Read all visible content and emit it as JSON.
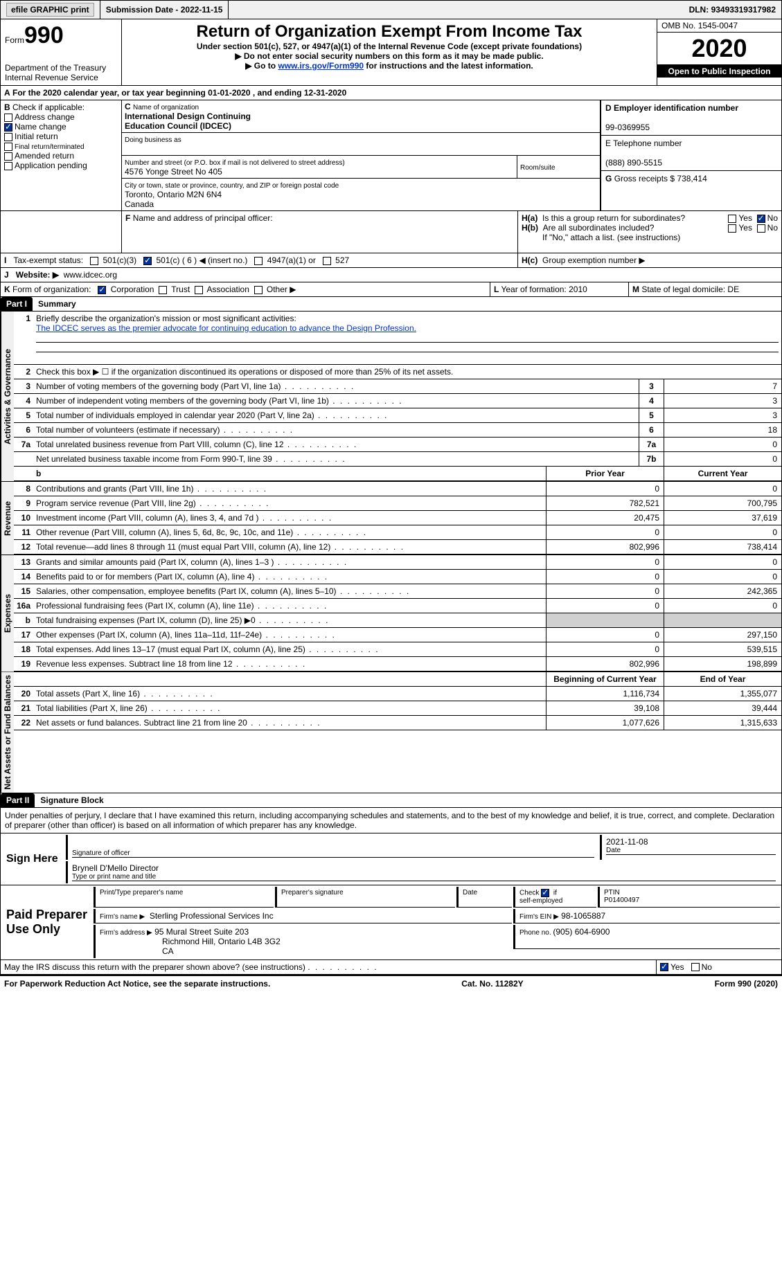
{
  "topbar": {
    "efile_label": "efile GRAPHIC print - ",
    "submission_label": "Submission Date - ",
    "submission_date": "2022-11-15",
    "dln_label": "DLN: ",
    "dln": "93493319317982"
  },
  "header": {
    "form_word": "Form",
    "form_no": "990",
    "dept1": "Department of the Treasury",
    "dept2": "Internal Revenue Service",
    "title": "Return of Organization Exempt From Income Tax",
    "sub1": "Under section 501(c), 527, or 4947(a)(1) of the Internal Revenue Code (except private foundations)",
    "sub2": "▶ Do not enter social security numbers on this form as it may be made public.",
    "sub3a": "▶ Go to ",
    "sub3_link": "www.irs.gov/Form990",
    "sub3b": " for instructions and the latest information.",
    "omb_label": "OMB No. ",
    "omb": "1545-0047",
    "year": "2020",
    "open_label": "Open to Public Inspection"
  },
  "A": {
    "text_a": "For the 2020 calendar year, or tax year beginning ",
    "begin": "01-01-2020",
    "text_b": " , and ending ",
    "end": "12-31-2020"
  },
  "B": {
    "label": "B",
    "check_label": "Check if applicable:",
    "items": [
      "Address change",
      "Name change",
      "Initial return",
      "Final return/terminated",
      "Amended return",
      "Application pending"
    ],
    "checked_idx": 1
  },
  "C": {
    "name_label": "Name of organization",
    "name1": "International Design Continuing",
    "name2": "Education Council (IDCEC)",
    "dba_label": "Doing business as",
    "street_label": "Number and street (or P.O. box if mail is not delivered to street address)",
    "room_label": "Room/suite",
    "street": "4576 Yonge Street No 405",
    "city_label": "City or town, state or province, country, and ZIP or foreign postal code",
    "city": "Toronto, Ontario  M2N 6N4",
    "country": "Canada"
  },
  "D": {
    "label": "D Employer identification number",
    "value": "99-0369955"
  },
  "E": {
    "label": "E Telephone number",
    "value": "(888) 890-5515"
  },
  "G": {
    "label": "G",
    "text": "Gross receipts $ ",
    "value": "738,414"
  },
  "F": {
    "label": "F",
    "text": "Name and address of principal officer:"
  },
  "H": {
    "ha_label": "H(a)",
    "ha_text": "Is this a group return for subordinates?",
    "yes": "Yes",
    "no": "No",
    "hb_label": "H(b)",
    "hb_text": "Are all subordinates included?",
    "hb_note": "If \"No,\" attach a list. (see instructions)",
    "hc_label": "H(c)",
    "hc_text": "Group exemption number ▶"
  },
  "I": {
    "label": "I",
    "text": "Tax-exempt status:",
    "opts": [
      "501(c)(3)",
      "501(c) ( 6 ) ◀ (insert no.)",
      "4947(a)(1) or",
      "527"
    ],
    "checked_idx": 1
  },
  "J": {
    "label": "J",
    "text": "Website: ▶",
    "value": "www.idcec.org"
  },
  "K": {
    "label": "K",
    "text": "Form of organization:",
    "opts": [
      "Corporation",
      "Trust",
      "Association",
      "Other ▶"
    ],
    "checked_idx": 0
  },
  "L": {
    "label": "L",
    "text": "Year of formation: ",
    "value": "2010"
  },
  "M": {
    "label": "M",
    "text": "State of legal domicile: ",
    "value": "DE"
  },
  "part1": {
    "hdr": "Part I",
    "title": "Summary",
    "group_a": "Activities & Governance",
    "group_b": "Revenue",
    "group_c": "Expenses",
    "group_d": "Net Assets or Fund Balances",
    "l1_label": "1",
    "l1_text": "Briefly describe the organization's mission or most significant activities:",
    "l1_value": "The IDCEC serves as the premier advocate for continuing education to advance the Design Profession.",
    "l2_label": "2",
    "l2_text": "Check this box ▶ ☐  if the organization discontinued its operations or disposed of more than 25% of its net assets.",
    "rows_a": [
      {
        "n": "3",
        "d": "Number of voting members of the governing body (Part VI, line 1a)",
        "k": "3",
        "v": "7"
      },
      {
        "n": "4",
        "d": "Number of independent voting members of the governing body (Part VI, line 1b)",
        "k": "4",
        "v": "3"
      },
      {
        "n": "5",
        "d": "Total number of individuals employed in calendar year 2020 (Part V, line 2a)",
        "k": "5",
        "v": "3"
      },
      {
        "n": "6",
        "d": "Total number of volunteers (estimate if necessary)",
        "k": "6",
        "v": "18"
      },
      {
        "n": "7a",
        "d": "Total unrelated business revenue from Part VIII, column (C), line 12",
        "k": "7a",
        "v": "0"
      },
      {
        "n": "",
        "d": "Net unrelated business taxable income from Form 990-T, line 39",
        "k": "7b",
        "v": "0"
      }
    ],
    "col_prior": "Prior Year",
    "col_current": "Current Year",
    "rows_b": [
      {
        "n": "8",
        "d": "Contributions and grants (Part VIII, line 1h)",
        "a": "0",
        "b": "0"
      },
      {
        "n": "9",
        "d": "Program service revenue (Part VIII, line 2g)",
        "a": "782,521",
        "b": "700,795"
      },
      {
        "n": "10",
        "d": "Investment income (Part VIII, column (A), lines 3, 4, and 7d )",
        "a": "20,475",
        "b": "37,619"
      },
      {
        "n": "11",
        "d": "Other revenue (Part VIII, column (A), lines 5, 6d, 8c, 9c, 10c, and 11e)",
        "a": "0",
        "b": "0"
      },
      {
        "n": "12",
        "d": "Total revenue—add lines 8 through 11 (must equal Part VIII, column (A), line 12)",
        "a": "802,996",
        "b": "738,414"
      }
    ],
    "rows_c": [
      {
        "n": "13",
        "d": "Grants and similar amounts paid (Part IX, column (A), lines 1–3 )",
        "a": "0",
        "b": "0"
      },
      {
        "n": "14",
        "d": "Benefits paid to or for members (Part IX, column (A), line 4)",
        "a": "0",
        "b": "0"
      },
      {
        "n": "15",
        "d": "Salaries, other compensation, employee benefits (Part IX, column (A), lines 5–10)",
        "a": "0",
        "b": "242,365"
      },
      {
        "n": "16a",
        "d": "Professional fundraising fees (Part IX, column (A), line 11e)",
        "a": "0",
        "b": "0"
      },
      {
        "n": "b",
        "d": "Total fundraising expenses (Part IX, column (D), line 25) ▶0",
        "a": "grey",
        "b": "grey"
      },
      {
        "n": "17",
        "d": "Other expenses (Part IX, column (A), lines 11a–11d, 11f–24e)",
        "a": "0",
        "b": "297,150"
      },
      {
        "n": "18",
        "d": "Total expenses. Add lines 13–17 (must equal Part IX, column (A), line 25)",
        "a": "0",
        "b": "539,515"
      },
      {
        "n": "19",
        "d": "Revenue less expenses. Subtract line 18 from line 12",
        "a": "802,996",
        "b": "198,899"
      }
    ],
    "col_begin": "Beginning of Current Year",
    "col_end": "End of Year",
    "rows_d": [
      {
        "n": "20",
        "d": "Total assets (Part X, line 16)",
        "a": "1,116,734",
        "b": "1,355,077"
      },
      {
        "n": "21",
        "d": "Total liabilities (Part X, line 26)",
        "a": "39,108",
        "b": "39,444"
      },
      {
        "n": "22",
        "d": "Net assets or fund balances. Subtract line 21 from line 20",
        "a": "1,077,626",
        "b": "1,315,633"
      }
    ]
  },
  "part2": {
    "hdr": "Part II",
    "title": "Signature Block",
    "decl": "Under penalties of perjury, I declare that I have examined this return, including accompanying schedules and statements, and to the best of my knowledge and belief, it is true, correct, and complete. Declaration of preparer (other than officer) is based on all information of which preparer has any knowledge.",
    "sign_here": "Sign Here",
    "sig_officer": "Signature of officer",
    "date_label": "Date",
    "sig_date": "2021-11-08",
    "officer_name": "Brynell D'Mello  Director",
    "type_name": "Type or print name and title",
    "paid": "Paid Preparer Use Only",
    "prep_name_label": "Print/Type preparer's name",
    "prep_sig_label": "Preparer's signature",
    "check_if": "Check",
    "self_emp": "self-employed",
    "ptin_label": "PTIN",
    "ptin": "P01400497",
    "firm_name_label": "Firm's name   ▶",
    "firm_name": "Sterling Professional Services Inc",
    "firm_ein_label": "Firm's EIN ▶",
    "firm_ein": "98-1065887",
    "firm_addr_label": "Firm's address ▶",
    "firm_addr1": "95 Mural Street Suite 203",
    "firm_addr2": "Richmond Hill, Ontario  L4B 3G2",
    "firm_addr3": "CA",
    "phone_label": "Phone no. ",
    "phone": "(905) 604-6900",
    "discuss": "May the IRS discuss this return with the preparer shown above? (see instructions)",
    "if_label": "if"
  },
  "footer": {
    "pra": "For Paperwork Reduction Act Notice, see the separate instructions.",
    "cat": "Cat. No. 11282Y",
    "form": "Form 990 (2020)"
  }
}
